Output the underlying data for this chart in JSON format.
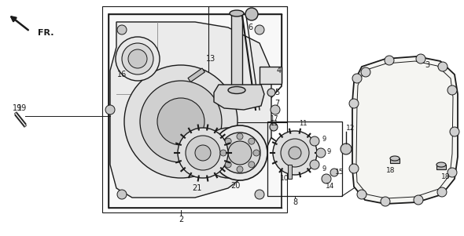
{
  "bg_color": "#f5f5f0",
  "lc": "#1a1a1a",
  "white": "#ffffff",
  "gray_light": "#d0d0d0",
  "gray_mid": "#999999",
  "figsize": [
    5.9,
    3.01
  ],
  "dpi": 100
}
